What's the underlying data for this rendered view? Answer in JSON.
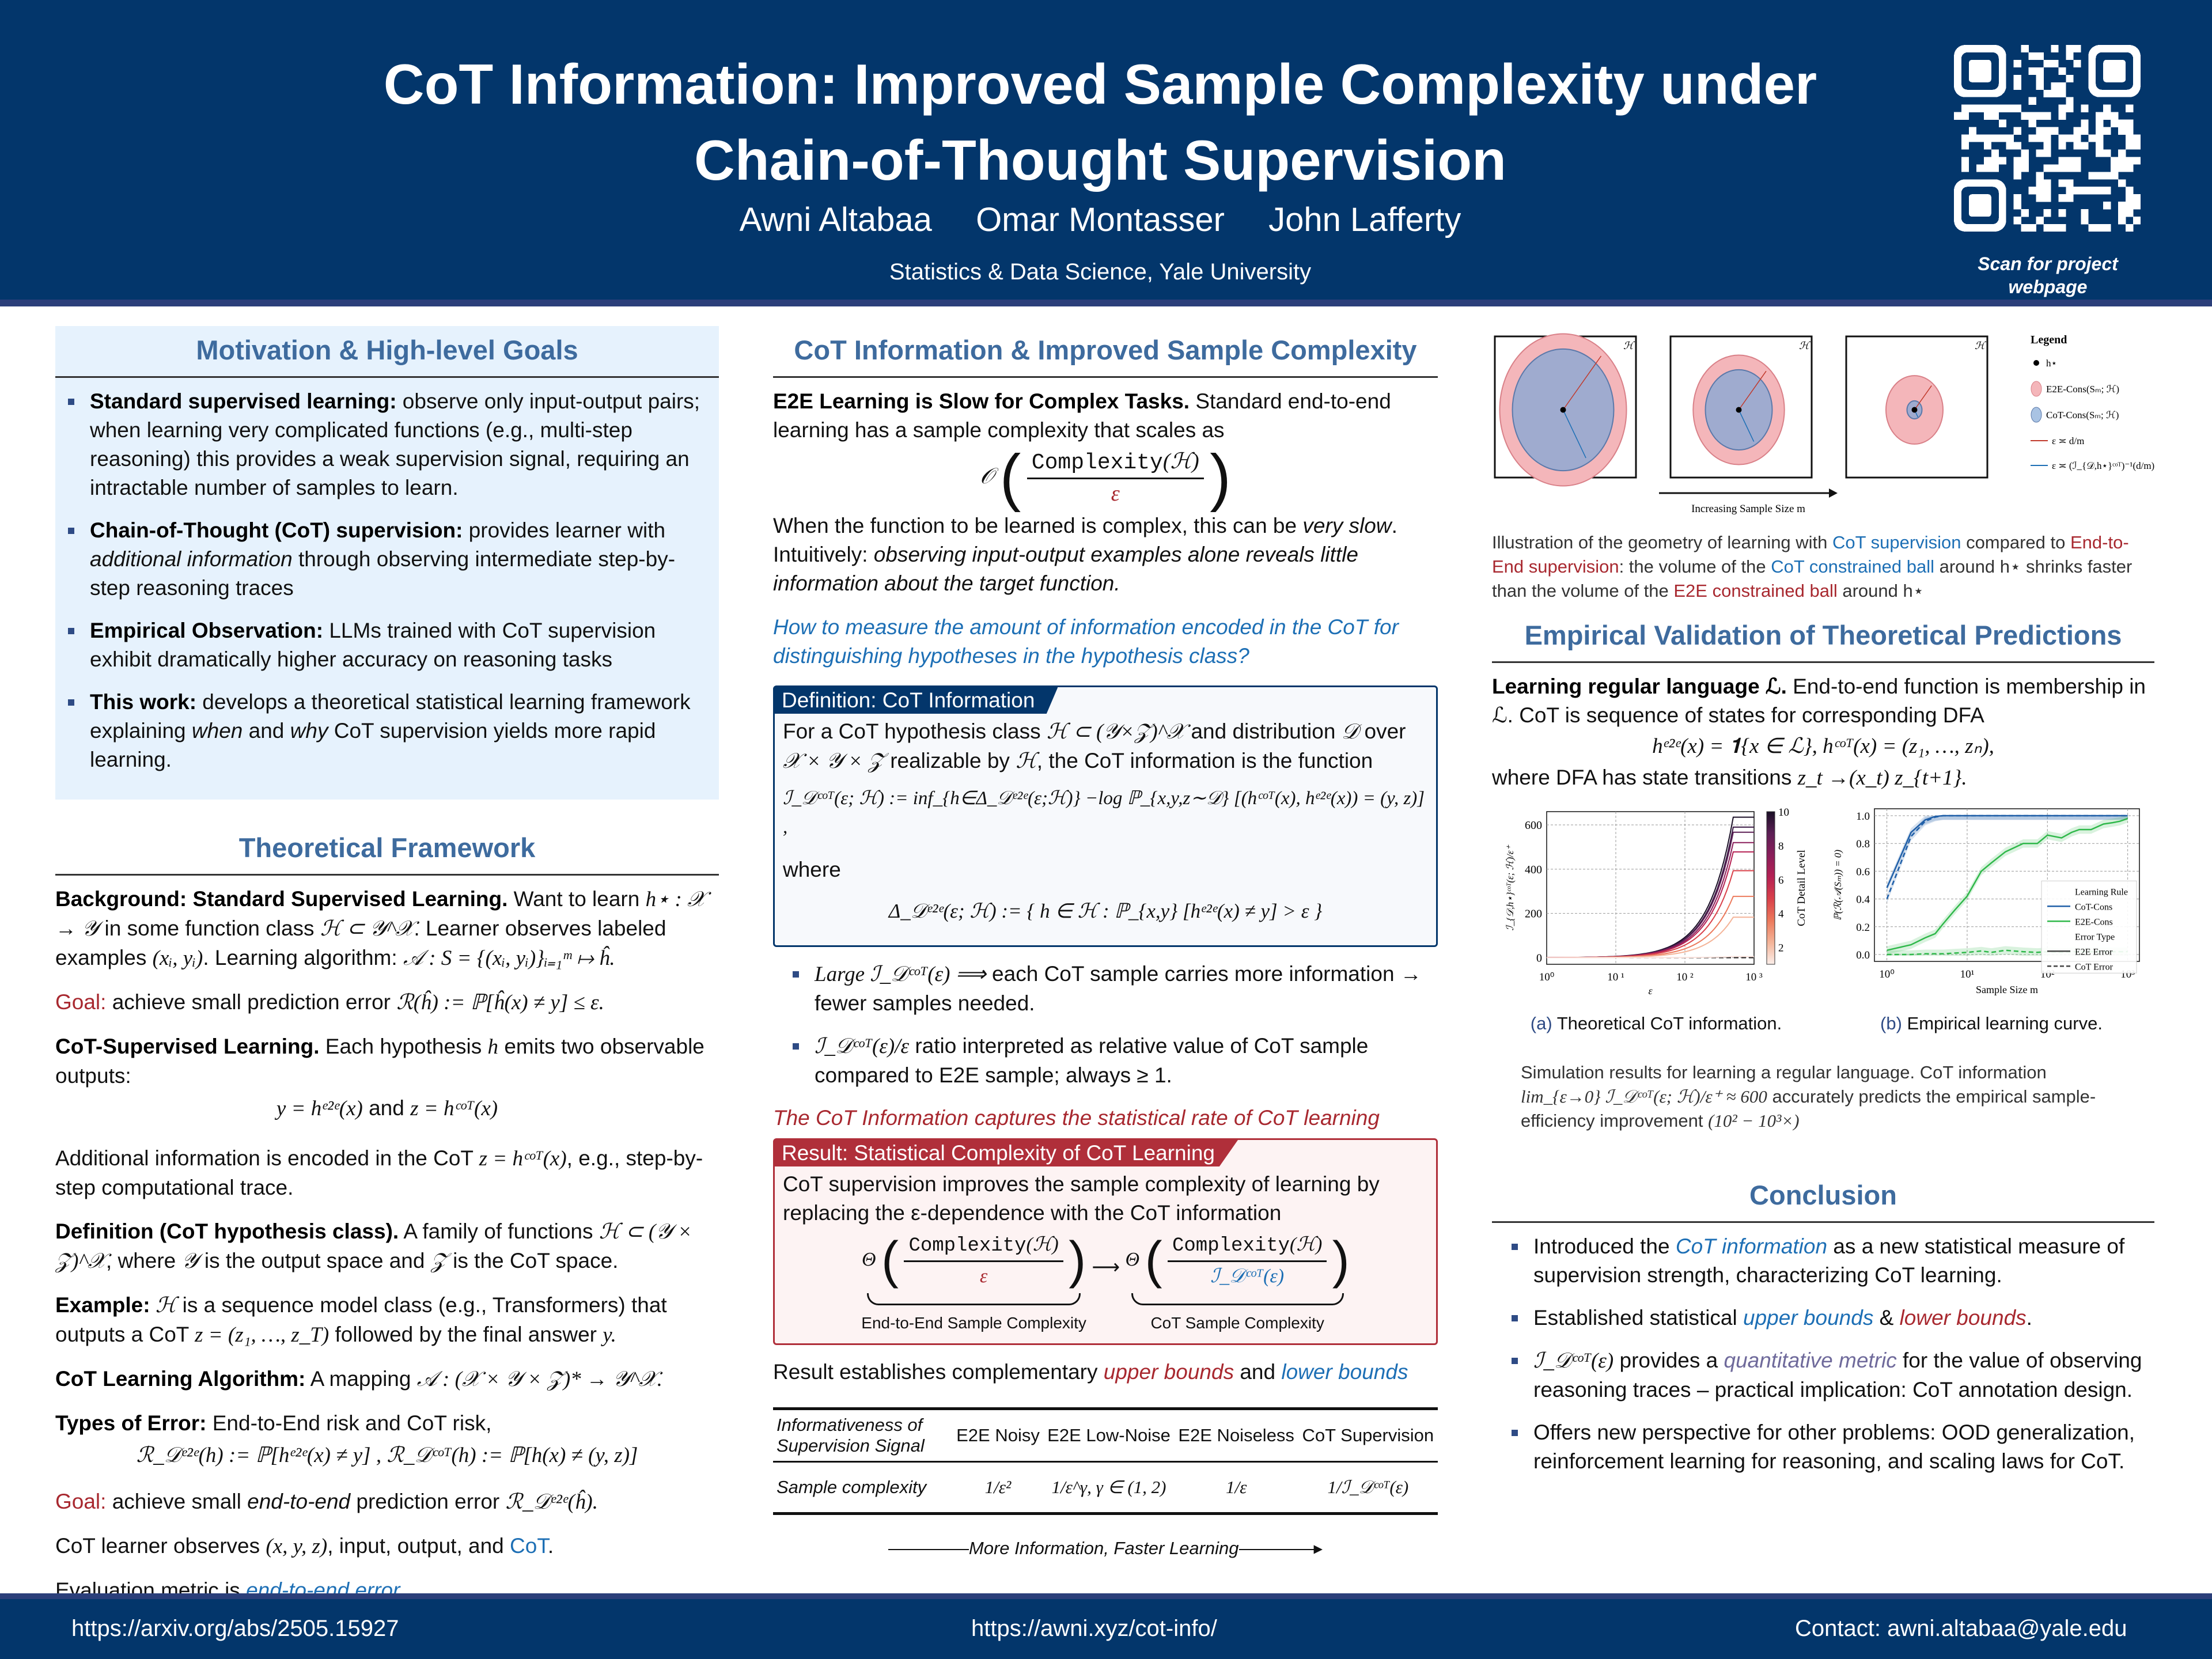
{
  "header": {
    "title_line1": "CoT Information: Improved Sample Complexity under",
    "title_line2": "Chain-of-Thought Supervision",
    "authors": [
      "Awni Altabaa",
      "Omar Montasser",
      "John Lafferty"
    ],
    "affiliation": "Statistics & Data Science, Yale University",
    "qr_label_line1": "Scan for project",
    "qr_label_line2": "webpage"
  },
  "colors": {
    "navy": "#03366b",
    "section_title": "#3e6b9e",
    "red": "#a8282f",
    "blue": "#1d6fb5",
    "light_blue_bg": "#e6f2fd"
  },
  "motivation": {
    "title": "Motivation & High-level Goals",
    "items": [
      {
        "bold": "Standard supervised learning:",
        "text": " observe only input-output pairs; when learning very complicated functions (e.g., multi-step reasoning) this provides a weak supervision signal, requiring an intractable number of samples to learn."
      },
      {
        "bold": "Chain-of-Thought (CoT) supervision:",
        "text_pre": " provides learner with ",
        "italic": "additional information",
        "text_post": " through observing intermediate step-by-step reasoning traces"
      },
      {
        "bold": "Empirical Observation:",
        "text": " LLMs trained with CoT supervision exhibit dramatically higher accuracy on reasoning tasks"
      },
      {
        "bold": "This work:",
        "text_pre": " develops a theoretical statistical learning framework explaining ",
        "italic1": "when",
        "text_mid": " and ",
        "italic2": "why",
        "text_post": " CoT supervision yields more rapid learning."
      }
    ]
  },
  "framework": {
    "title": "Theoretical Framework",
    "background_bold": "Background: Standard Supervised Learning.",
    "background_text1": " Want to learn ",
    "background_math1": "h⋆ : 𝒳 → 𝒴",
    "background_text2": " in some function class ",
    "background_math2": "ℋ ⊂ 𝒴^𝒳",
    "background_text3": ". Learner observes labeled examples ",
    "background_math3": "(xᵢ, yᵢ)",
    "background_text4": ". Learning algorithm: ",
    "background_math4": "𝒜 : S = {(xᵢ, yᵢ)}ᵢ₌₁ᵐ ↦ ĥ.",
    "goal1_label": "Goal:",
    "goal1_text": " achieve small prediction error ",
    "goal1_math": "ℛ(ĥ) := ℙ[ĥ(x) ≠ y] ≤ ε.",
    "cot_sup_bold": "CoT-Supervised Learning.",
    "cot_sup_text1": " Each hypothesis ",
    "cot_sup_math": "h",
    "cot_sup_text2": " emits two observable outputs:",
    "outputs_math1": "y = hᵉ²ᵉ(x)",
    "outputs_and": " and ",
    "outputs_math2": "z = hᶜᵒᵀ(x)",
    "additional_text1": "Additional information is encoded in the CoT ",
    "additional_math": "z = hᶜᵒᵀ(x)",
    "additional_text2": ", e.g., step-by-step computational trace.",
    "def_bold": "Definition (CoT hypothesis class).",
    "def_text1": " A family of functions ",
    "def_math1": "ℋ ⊂ (𝒴 × 𝒵)^𝒳",
    "def_text2": ", where ",
    "def_math2": "𝒴",
    "def_text3": " is the output space and ",
    "def_math3": "𝒵",
    "def_text4": " is the CoT space.",
    "example_bold": "Example:",
    "example_math1": " ℋ",
    "example_text1": " is a sequence model class (e.g., Transformers) that outputs a CoT ",
    "example_math2": "z = (z₁, …, z_T)",
    "example_text2": " followed by the final answer ",
    "example_math3": "y.",
    "algo_bold": "CoT Learning Algorithm:",
    "algo_text": " A mapping ",
    "algo_math": "𝒜 : (𝒳 × 𝒴 × 𝒵)* → 𝒴^𝒳.",
    "errors_bold": "Types of Error:",
    "errors_text": " End-to-End risk and CoT risk,",
    "errors_math": "ℛ_𝒟ᵉ²ᵉ(h) := ℙ[hᵉ²ᵉ(x) ≠ y] ,  ℛ_𝒟ᶜᵒᵀ(h) := ℙ[h(x) ≠ (y, z)]",
    "goal2_label": "Goal:",
    "goal2_text1": " achieve small ",
    "goal2_italic": "end-to-end",
    "goal2_text2": " prediction error ",
    "goal2_math": "ℛ_𝒟ᵉ²ᵉ(ĥ).",
    "observes_text1": "CoT learner observes ",
    "observes_math": "(x, y, z)",
    "observes_text2": ", input, output, and ",
    "observes_cot": "CoT",
    "observes_end": ".",
    "eval_text": "Evaluation metric is ",
    "eval_link": "end-to-end error",
    "eval_end": "."
  },
  "cot_info": {
    "title": "CoT Information & Improved Sample Complexity",
    "e2e_bold": "E2E Learning is Slow for Complex Tasks.",
    "e2e_text": " Standard end-to-end learning has a sample complexity that scales as",
    "big_o": "𝒪",
    "complexity": "Complexity",
    "complexity_arg": "(ℋ)",
    "eps": "ε",
    "when_text1": "When the function to be learned is complex, this can be ",
    "when_italic": "very slow",
    "when_text2": ". Intuitively: ",
    "when_italic2": "observing input-output examples alone reveals little information about the target function.",
    "question": "How to measure the amount of information encoded in the CoT for distinguishing hypotheses in the hypothesis class?",
    "def_box_title": "Definition: CoT Information",
    "def_box_text1": "For a CoT hypothesis class ",
    "def_box_math1": "ℋ ⊂ (𝒴×𝒵)^𝒳",
    "def_box_text2": " and distribution ",
    "def_box_math2": "𝒟",
    "def_box_text3": " over ",
    "def_box_math3": "𝒳 × 𝒴 × 𝒵",
    "def_box_text4": " realizable by ",
    "def_box_math4": "ℋ",
    "def_box_text5": ", the CoT information is the function",
    "def_box_formula": "ℐ_𝒟ᶜᵒᵀ(ε; ℋ) := inf_{h∈Δ_𝒟ᵉ²ᵉ(ε;ℋ)} −log ℙ_{x,y,z∼𝒟} [(hᶜᵒᵀ(x), hᵉ²ᵉ(x)) = (y, z)] ,",
    "def_box_where": "where",
    "def_box_delta": "Δ_𝒟ᵉ²ᵉ(ε; ℋ) := { h ∈ ℋ : ℙ_{x,y} [hᵉ²ᵉ(x) ≠ y] > ε }",
    "bullet1_math": "Large ℐ_𝒟ᶜᵒᵀ(ε) ⟹",
    "bullet1_text": " each CoT sample carries more information → fewer samples needed.",
    "bullet2_math": "ℐ_𝒟ᶜᵒᵀ(ε)/ε",
    "bullet2_text": " ratio interpreted as relative value of CoT sample compared to E2E sample; always ≥ 1.",
    "captures": "The CoT Information captures the statistical rate of CoT learning",
    "result_box_title": "Result: Statistical Complexity of CoT Learning",
    "result_box_text": "CoT supervision improves the sample complexity of learning by replacing the ε-dependence with the CoT information",
    "theta": "Θ",
    "arrow": "⟶",
    "cot_info_symbol": "ℐ_𝒟ᶜᵒᵀ(ε)",
    "e2e_label": "End-to-End Sample Complexity",
    "cot_label": "CoT Sample Complexity",
    "establishes_text": "Result establishes complementary ",
    "establishes_upper": "upper bounds",
    "establishes_and": " and ",
    "establishes_lower": "lower bounds",
    "table": {
      "header_first": "Informativeness of Supervision Signal",
      "columns": [
        "E2E Noisy",
        "E2E Low-Noise",
        "E2E Noiseless",
        "CoT Supervision"
      ],
      "row_label": "Sample complexity",
      "values": [
        "1/ε²",
        "1/ε^γ,  γ ∈ (1, 2)",
        "1/ε",
        "1/ℐ_𝒟ᶜᵒᵀ(ε)"
      ]
    },
    "more_info": "More Information, Faster Learning"
  },
  "geometry": {
    "h_label": "ℋ",
    "legend_title": "Legend",
    "legend_items": [
      "h⋆",
      "E2E-Cons(Sₘ; ℋ)",
      "CoT-Cons(Sₘ; ℋ)",
      "ε ≍ d/m",
      "ε ≍ (ℐ_{𝒟,h⋆}ᶜᵒᵀ)⁻¹(d/m)"
    ],
    "arrow_label": "Increasing Sample Size m",
    "panel_scale": [
      1.0,
      0.72,
      0.45
    ],
    "caption_text1": "Illustration of the geometry of learning with ",
    "caption_cot_sup": "CoT supervision",
    "caption_text2": " compared to ",
    "caption_e2e_sup": "End-to-End supervision",
    "caption_text3": ": the volume of the ",
    "caption_cot_ball": "CoT constrained ball",
    "caption_text4": " around h⋆ shrinks faster than the volume of the ",
    "caption_e2e_ball": "E2E constrained ball",
    "caption_text5": " around h⋆"
  },
  "empirical": {
    "title": "Empirical Validation of Theoretical Predictions",
    "bold": "Learning regular language ℒ.",
    "text": " End-to-end function is membership in ℒ. CoT is sequence of states for corresponding DFA",
    "formula": "hᵉ²ᵉ(x) = 𝟏{x ∈ ℒ},  hᶜᵒᵀ(x) = (z₁, …, zₙ),",
    "where_text": "where DFA has state transitions ",
    "where_math": "z_t →(x_t) z_{t+1}.",
    "caption_a_label": "(a)",
    "caption_a": " Theoretical CoT information.",
    "caption_b_label": "(b)",
    "caption_b": " Empirical learning curve.",
    "sim_text1": "Simulation results for learning a regular language. CoT information ",
    "sim_math": "lim_{ε→0} ℐ_𝒟ᶜᵒᵀ(ε; ℋ)/ε⁺ ≈ 600",
    "sim_text2": " accurately predicts the empirical sample-efficiency improvement ",
    "sim_math2": "(10² − 10³×)"
  },
  "chart_data": [
    {
      "type": "line",
      "title": "",
      "xlabel": "ε",
      "ylabel": "ℐ_{𝒟,h⋆}ᶜᵒᵀ(ε; ℋ)/ε⁺",
      "xscale": "log",
      "xlim": [
        1,
        1000
      ],
      "ylim": [
        -30,
        660
      ],
      "xticks": [
        "10⁰",
        "10 ¹",
        "10 ²",
        "10 ³"
      ],
      "yticks": [
        0,
        200,
        400,
        600
      ],
      "grid": true,
      "colorbar": {
        "label": "CoT Detail Level",
        "ticks": [
          2,
          4,
          6,
          8,
          10
        ],
        "range": [
          1,
          10
        ]
      },
      "series": [
        {
          "name": "level 10",
          "plateau": 635,
          "color": "#1a0f26"
        },
        {
          "name": "level 9",
          "plateau": 590,
          "color": "#3b1a45"
        },
        {
          "name": "level 8",
          "plateau": 567,
          "color": "#5c1f55"
        },
        {
          "name": "level 7",
          "plateau": 520,
          "color": "#8a1e5a"
        },
        {
          "name": "level 6",
          "plateau": 478,
          "color": "#b52153"
        },
        {
          "name": "level 5",
          "plateau": 393,
          "color": "#d9414a"
        },
        {
          "name": "level 4",
          "plateau": 277,
          "color": "#ec7a5c"
        },
        {
          "name": "level 3",
          "plateau": 183,
          "color": "#f4b498"
        },
        {
          "name": "level 1",
          "plateau": 5,
          "color": "#fae3dd"
        }
      ],
      "plateau_start_eps": 500,
      "dashed_baseline": 0
    },
    {
      "type": "line",
      "title": "",
      "xlabel": "Sample Size m",
      "ylabel": "ℙ(ℛ(𝒜(Sₘ)) = 0)",
      "xscale": "log",
      "xlim": [
        0.7,
        1400
      ],
      "ylim": [
        -0.05,
        1.05
      ],
      "xticks": [
        "10⁰",
        "10¹",
        "10²",
        "10³"
      ],
      "yticks": [
        "0.0",
        "0.2",
        "0.4",
        "0.6",
        "0.8",
        "1.0"
      ],
      "grid": true,
      "legend": {
        "position": "lower-right",
        "title1": "Learning Rule",
        "rules": [
          "CoT-Cons",
          "E2E-Cons"
        ],
        "title2": "Error Type",
        "types": [
          "E2E Error",
          "CoT Error"
        ]
      },
      "x": [
        1,
        2,
        3,
        4,
        5,
        7,
        10,
        15,
        20,
        30,
        50,
        75,
        100,
        150,
        200,
        250,
        350,
        500,
        650,
        800,
        1000
      ],
      "series": [
        {
          "name": "CoT-Cons E2E Error",
          "color": "#1f5fa8",
          "dash": false,
          "values": [
            0.48,
            0.88,
            0.97,
            0.995,
            1,
            1,
            1,
            1,
            1,
            1,
            1,
            1,
            1,
            1,
            1,
            1,
            1,
            1,
            1,
            1,
            1
          ]
        },
        {
          "name": "CoT-Cons CoT Error",
          "color": "#1f5fa8",
          "dash": true,
          "values": [
            0.4,
            0.85,
            0.96,
            0.99,
            1,
            1,
            1,
            1,
            1,
            1,
            1,
            1,
            1,
            1,
            1,
            1,
            1,
            1,
            1,
            1,
            1
          ]
        },
        {
          "name": "E2E-Cons E2E Error",
          "color": "#2fb84a",
          "dash": false,
          "values": [
            0.03,
            0.07,
            0.12,
            0.15,
            0.22,
            0.32,
            0.42,
            0.6,
            0.66,
            0.74,
            0.8,
            0.8,
            0.86,
            0.84,
            0.88,
            0.9,
            0.9,
            0.94,
            0.95,
            0.96,
            0.98
          ]
        },
        {
          "name": "E2E-Cons CoT Error",
          "color": "#2fb84a",
          "dash": true,
          "values": [
            0.0,
            0.0,
            0.005,
            0.005,
            0.005,
            0.01,
            0.015,
            0.025,
            0.015,
            0.03,
            0.02,
            0.015,
            0.02,
            0.015,
            0.02,
            0.02,
            0.02,
            0.02,
            0.02,
            0.02,
            0.02
          ]
        }
      ]
    }
  ],
  "conclusion": {
    "title": "Conclusion",
    "item1_pre": "Introduced the ",
    "item1_em": "CoT information",
    "item1_post": " as a new statistical measure of supervision strength, characterizing CoT learning.",
    "item2_pre": "Established statistical ",
    "item2_upper": "upper bounds",
    "item2_mid": " & ",
    "item2_lower": "lower bounds",
    "item2_end": ".",
    "item3_math": "ℐ_𝒟ᶜᵒᵀ(ε)",
    "item3_pre": " provides a ",
    "item3_em": "quantitative metric",
    "item3_post": " for the value of observing reasoning traces – practical implication: CoT annotation design.",
    "item4": "Offers new perspective for other problems: OOD generalization, reinforcement learning for reasoning, and scaling laws for CoT."
  },
  "footer": {
    "arxiv": "https://arxiv.org/abs/2505.15927",
    "site": "https://awni.xyz/cot-info/",
    "contact": "Contact: awni.altabaa@yale.edu"
  }
}
